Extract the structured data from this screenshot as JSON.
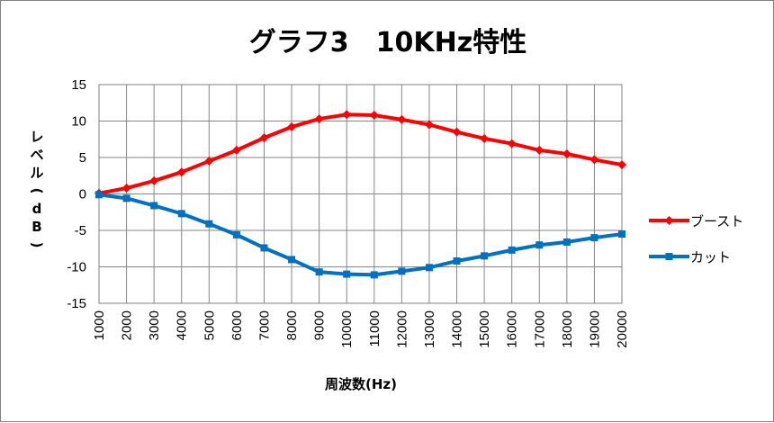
{
  "chart_data": {
    "type": "line",
    "title": "グラフ3　10KHz特性",
    "xlabel": "周波数(Hz)",
    "ylabel": "レベル(dB)",
    "categories": [
      "1000",
      "2000",
      "3000",
      "4000",
      "5000",
      "6000",
      "7000",
      "8000",
      "9000",
      "10000",
      "11000",
      "12000",
      "13000",
      "14000",
      "15000",
      "16000",
      "17000",
      "18000",
      "19000",
      "20000"
    ],
    "ylim": [
      -15,
      15
    ],
    "yticks": [
      -15,
      -10,
      -5,
      0,
      5,
      10,
      15
    ],
    "grid": true,
    "legend_position": "right",
    "series": [
      {
        "name": "ブースト",
        "color": "#ff0000",
        "marker": "diamond",
        "values": [
          0.1,
          0.8,
          1.8,
          3.0,
          4.5,
          6.0,
          7.7,
          9.2,
          10.3,
          10.9,
          10.8,
          10.2,
          9.5,
          8.5,
          7.6,
          6.9,
          6.0,
          5.5,
          4.7,
          4.0
        ]
      },
      {
        "name": "カット",
        "color": "#0070c0",
        "marker": "square",
        "values": [
          -0.1,
          -0.6,
          -1.6,
          -2.7,
          -4.1,
          -5.6,
          -7.4,
          -9.0,
          -10.7,
          -11.0,
          -11.1,
          -10.6,
          -10.1,
          -9.2,
          -8.5,
          -7.7,
          -7.0,
          -6.6,
          -6.0,
          -5.5
        ]
      }
    ]
  }
}
